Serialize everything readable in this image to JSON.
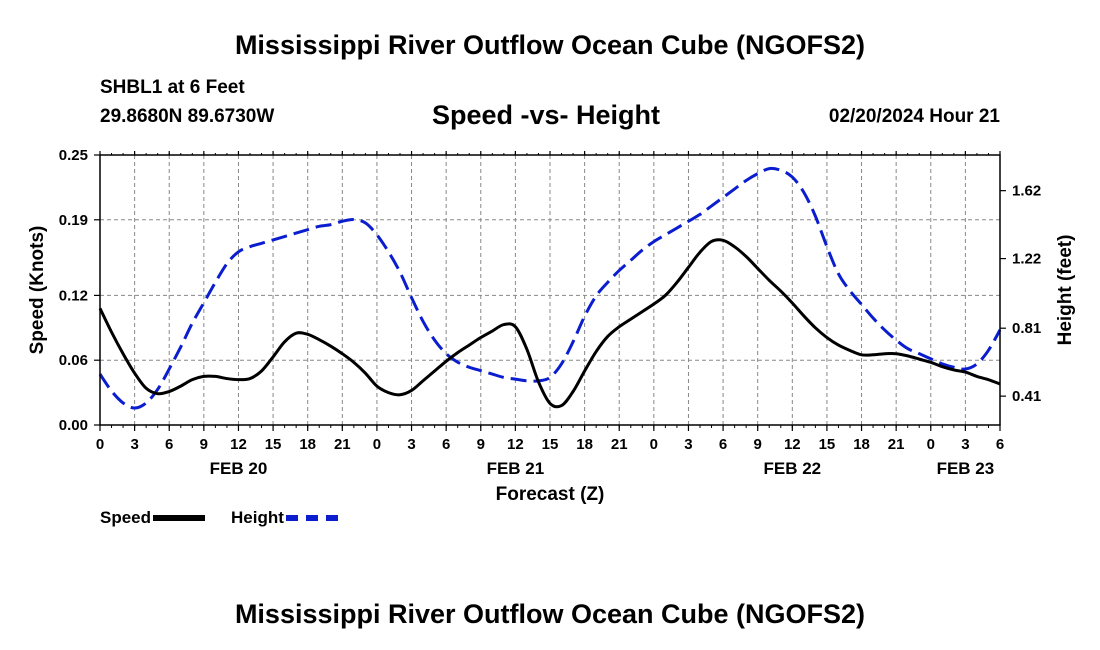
{
  "title": "Mississippi River Outflow Ocean Cube (NGOFS2)",
  "footer_title": "Mississippi River Outflow Ocean Cube (NGOFS2)",
  "station": {
    "name": "SHBL1 at 6 Feet",
    "coords": "29.8680N  89.6730W",
    "run_datetime": "02/20/2024 Hour 21"
  },
  "colors": {
    "speed": "#000000",
    "height": "#0a1ecf",
    "grid": "#888888"
  },
  "chart_data": {
    "type": "line",
    "title": "Speed -vs- Height",
    "xlabel": "Forecast (Z)",
    "ylabel": "Speed (Knots)",
    "y2label": "Height (feet)",
    "xlim": [
      0,
      78
    ],
    "ylim": [
      0,
      0.25
    ],
    "y2lim": [
      0.24,
      1.83
    ],
    "x_ticks": [
      0,
      3,
      6,
      9,
      12,
      15,
      18,
      21,
      24,
      27,
      30,
      33,
      36,
      39,
      42,
      45,
      48,
      51,
      54,
      57,
      60,
      63,
      66,
      69,
      72,
      75,
      78
    ],
    "x_tick_labels": [
      "0",
      "3",
      "6",
      "9",
      "12",
      "15",
      "18",
      "21",
      "0",
      "3",
      "6",
      "9",
      "12",
      "15",
      "18",
      "21",
      "0",
      "3",
      "6",
      "9",
      "12",
      "15",
      "18",
      "21",
      "0",
      "3",
      "6"
    ],
    "date_labels": [
      {
        "x": 12,
        "text": "FEB 20"
      },
      {
        "x": 36,
        "text": "FEB 21"
      },
      {
        "x": 60,
        "text": "FEB 22"
      },
      {
        "x": 75,
        "text": "FEB 23"
      }
    ],
    "y_ticks": [
      0,
      0.06,
      0.12,
      0.19,
      0.25
    ],
    "y_tick_labels": [
      "0.00",
      "0.06",
      "0.12",
      "0.19",
      "0.25"
    ],
    "y2_ticks": [
      0.41,
      0.81,
      1.22,
      1.62
    ],
    "y2_tick_labels": [
      "0.41",
      "0.81",
      "1.22",
      "1.62"
    ],
    "series": [
      {
        "name": "Speed",
        "axis": "left",
        "style": "solid",
        "x": [
          0,
          1,
          2,
          3,
          4,
          5,
          6,
          7,
          8,
          9,
          10,
          11,
          12,
          13,
          14,
          15,
          16,
          17,
          18,
          19,
          20,
          21,
          22,
          23,
          24,
          25,
          26,
          27,
          28,
          29,
          30,
          31,
          32,
          33,
          34,
          35,
          36,
          37,
          38,
          39,
          40,
          41,
          42,
          43,
          44,
          45,
          46,
          47,
          48,
          49,
          50,
          51,
          52,
          53,
          54,
          55,
          56,
          57,
          58,
          59,
          60,
          61,
          62,
          63,
          64,
          65,
          66,
          67,
          68,
          69,
          70,
          71,
          72,
          73,
          74,
          75,
          76,
          77,
          78
        ],
        "values": [
          0.108,
          0.086,
          0.066,
          0.048,
          0.034,
          0.029,
          0.031,
          0.036,
          0.042,
          0.045,
          0.045,
          0.043,
          0.042,
          0.043,
          0.05,
          0.063,
          0.077,
          0.085,
          0.084,
          0.079,
          0.073,
          0.066,
          0.058,
          0.048,
          0.036,
          0.03,
          0.028,
          0.032,
          0.041,
          0.05,
          0.059,
          0.067,
          0.074,
          0.081,
          0.087,
          0.093,
          0.091,
          0.07,
          0.04,
          0.02,
          0.018,
          0.031,
          0.05,
          0.068,
          0.082,
          0.091,
          0.098,
          0.105,
          0.112,
          0.12,
          0.132,
          0.146,
          0.16,
          0.17,
          0.171,
          0.165,
          0.156,
          0.145,
          0.134,
          0.124,
          0.113,
          0.101,
          0.09,
          0.081,
          0.074,
          0.069,
          0.065,
          0.065,
          0.066,
          0.066,
          0.064,
          0.061,
          0.058,
          0.054,
          0.051,
          0.049,
          0.045,
          0.042,
          0.038
        ]
      },
      {
        "name": "Height",
        "axis": "right",
        "style": "dashed",
        "x": [
          0,
          1,
          2,
          3,
          4,
          5,
          6,
          7,
          8,
          9,
          10,
          11,
          12,
          13,
          14,
          15,
          16,
          17,
          18,
          19,
          20,
          21,
          22,
          23,
          24,
          25,
          26,
          27,
          28,
          29,
          30,
          31,
          32,
          33,
          34,
          35,
          36,
          37,
          38,
          39,
          40,
          41,
          42,
          43,
          44,
          45,
          46,
          47,
          48,
          49,
          50,
          51,
          52,
          53,
          54,
          55,
          56,
          57,
          58,
          59,
          60,
          61,
          62,
          63,
          64,
          65,
          66,
          67,
          68,
          69,
          70,
          71,
          72,
          73,
          74,
          75,
          76,
          77,
          78
        ],
        "values": [
          0.54,
          0.44,
          0.37,
          0.34,
          0.37,
          0.45,
          0.57,
          0.7,
          0.84,
          0.96,
          1.08,
          1.19,
          1.26,
          1.29,
          1.31,
          1.33,
          1.35,
          1.37,
          1.39,
          1.41,
          1.42,
          1.44,
          1.45,
          1.43,
          1.36,
          1.26,
          1.14,
          0.99,
          0.85,
          0.74,
          0.66,
          0.61,
          0.58,
          0.56,
          0.54,
          0.52,
          0.51,
          0.5,
          0.5,
          0.52,
          0.6,
          0.73,
          0.88,
          1.0,
          1.08,
          1.15,
          1.21,
          1.27,
          1.32,
          1.36,
          1.4,
          1.44,
          1.48,
          1.53,
          1.58,
          1.63,
          1.68,
          1.72,
          1.75,
          1.74,
          1.7,
          1.61,
          1.47,
          1.29,
          1.13,
          1.03,
          0.95,
          0.87,
          0.8,
          0.74,
          0.69,
          0.66,
          0.63,
          0.6,
          0.58,
          0.57,
          0.6,
          0.68,
          0.8
        ]
      }
    ],
    "legend": [
      "Speed",
      "Height"
    ],
    "legend_position": "bottom-left",
    "grid": true
  }
}
